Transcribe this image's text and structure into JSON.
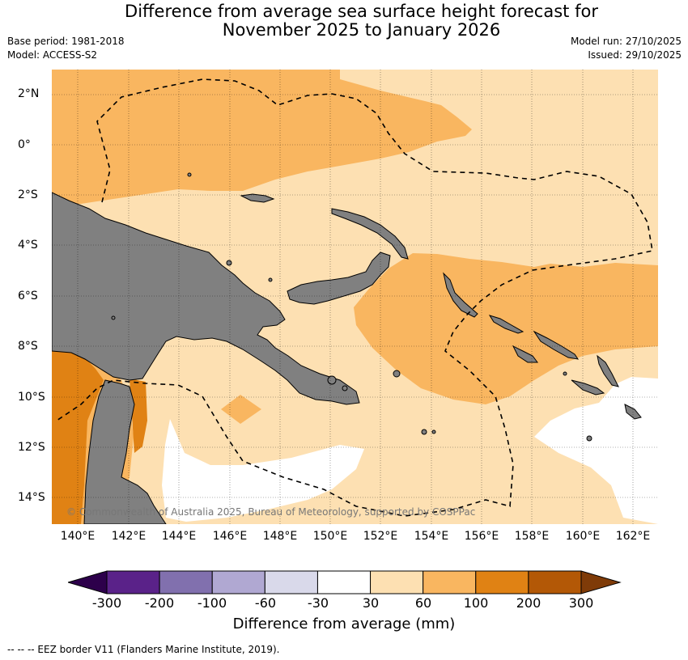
{
  "title_line1": "Difference from average sea surface height forecast for",
  "title_line2": "November 2025 to January 2026",
  "meta": {
    "base_period": "Base period: 1981-2018",
    "model": "Model: ACCESS-S2",
    "model_run": "Model run: 27/10/2025",
    "issued": "Issued: 29/10/2025"
  },
  "map": {
    "lat_labels": [
      "2°N",
      "0°",
      "2°S",
      "4°S",
      "6°S",
      "8°S",
      "10°S",
      "12°S",
      "14°S"
    ],
    "lon_labels": [
      "140°E",
      "142°E",
      "144°E",
      "146°E",
      "148°E",
      "150°E",
      "152°E",
      "154°E",
      "156°E",
      "158°E",
      "160°E",
      "162°E"
    ],
    "copyright": "© Commonwealth of Australia 2025, Bureau of Meteorology, supported by COSPPac",
    "land_color": "#808080"
  },
  "colorbar": {
    "tick_labels": [
      "-300",
      "-200",
      "-100",
      "-60",
      "-30",
      "30",
      "60",
      "100",
      "200",
      "300"
    ],
    "colors": [
      "#5a2289",
      "#8170ae",
      "#b0a8d2",
      "#d9d9ea",
      "#ffffff",
      "#fde0b2",
      "#f9b660",
      "#e08214",
      "#b35806"
    ],
    "under_color": "#2d004b",
    "over_color": "#7f3b08",
    "label": "Difference from average (mm)"
  },
  "footnote": "--  --  -- EEZ border V11 (Flanders Marine Institute, 2019)."
}
